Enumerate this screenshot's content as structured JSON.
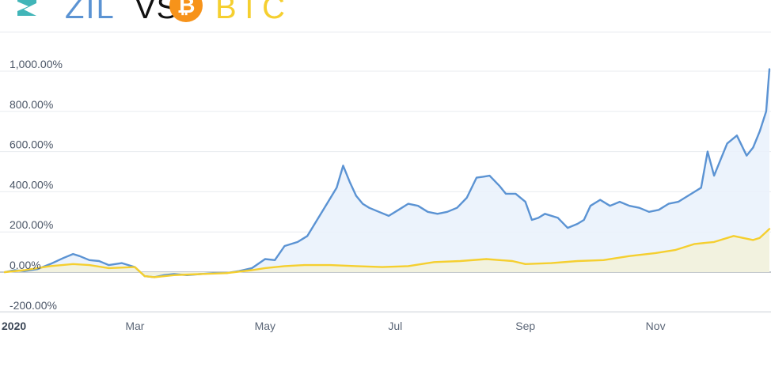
{
  "header": {
    "left_label": "ZIL",
    "vs_label": "VS",
    "right_label": "BTC",
    "left_icon": "zilliqa-logo-icon",
    "right_icon": "bitcoin-icon",
    "btc_symbol": "₿",
    "colors": {
      "zil": "#5b93d3",
      "btc": "#f5cf2f",
      "btc_coin": "#f7931a"
    }
  },
  "chart_data": {
    "type": "area",
    "title": "",
    "xlabel": "",
    "ylabel": "",
    "x_tick_labels": [
      "2020",
      "Mar",
      "May",
      "Jul",
      "Sep",
      "Nov"
    ],
    "y_tick_labels": [
      "1,000.00%",
      "800.00%",
      "600.00%",
      "400.00%",
      "200.00%",
      "0.00%",
      "-200.00%"
    ],
    "y_tick_values": [
      1000,
      800,
      600,
      400,
      200,
      0,
      -200
    ],
    "x_tick_values": [
      0,
      2,
      4,
      6,
      8,
      10
    ],
    "xlim": [
      0,
      11.75
    ],
    "ylim": [
      -200,
      1000
    ],
    "grid": true,
    "series": [
      {
        "color": "#5b93d3",
        "fill": "#e9f1fb",
        "x": [
          0,
          0.15,
          0.3,
          0.5,
          0.7,
          0.9,
          1.05,
          1.15,
          1.3,
          1.45,
          1.6,
          1.8,
          2.0,
          2.15,
          2.3,
          2.45,
          2.6,
          2.8,
          3.0,
          3.2,
          3.4,
          3.6,
          3.8,
          4.0,
          4.15,
          4.3,
          4.5,
          4.65,
          4.8,
          4.95,
          5.1,
          5.2,
          5.3,
          5.4,
          5.5,
          5.6,
          5.75,
          5.9,
          6.05,
          6.2,
          6.35,
          6.5,
          6.65,
          6.8,
          6.95,
          7.1,
          7.25,
          7.35,
          7.45,
          7.6,
          7.7,
          7.85,
          8.0,
          8.1,
          8.2,
          8.3,
          8.5,
          8.65,
          8.8,
          8.9,
          9.0,
          9.15,
          9.3,
          9.45,
          9.6,
          9.75,
          9.9,
          10.05,
          10.2,
          10.35,
          10.5,
          10.6,
          10.7,
          10.8,
          10.9,
          11.0,
          11.1,
          11.25,
          11.4,
          11.5,
          11.6,
          11.7,
          11.75
        ],
        "y": [
          0,
          10,
          5,
          15,
          40,
          70,
          90,
          80,
          60,
          55,
          35,
          45,
          25,
          -20,
          -25,
          -15,
          -10,
          -15,
          -10,
          -5,
          -5,
          5,
          20,
          65,
          60,
          130,
          150,
          180,
          260,
          340,
          420,
          530,
          450,
          380,
          340,
          320,
          300,
          280,
          310,
          340,
          330,
          300,
          290,
          300,
          320,
          370,
          470,
          475,
          480,
          430,
          390,
          390,
          350,
          260,
          270,
          290,
          270,
          220,
          240,
          260,
          330,
          360,
          330,
          350,
          330,
          320,
          300,
          310,
          340,
          350,
          380,
          400,
          420,
          600,
          480,
          560,
          640,
          680,
          580,
          620,
          700,
          800,
          1010
        ]
      },
      {
        "color": "#f5cf2f",
        "fill": "#f3f1d9",
        "x": [
          0,
          0.3,
          0.7,
          1.05,
          1.3,
          1.6,
          2.0,
          2.15,
          2.3,
          2.6,
          3.0,
          3.4,
          3.8,
          4.0,
          4.3,
          4.6,
          5.0,
          5.4,
          5.8,
          6.2,
          6.6,
          7.0,
          7.4,
          7.8,
          8.0,
          8.4,
          8.8,
          9.2,
          9.6,
          10.0,
          10.3,
          10.6,
          10.9,
          11.2,
          11.5,
          11.6,
          11.7,
          11.75
        ],
        "y": [
          0,
          10,
          30,
          40,
          35,
          20,
          25,
          -20,
          -25,
          -15,
          -10,
          -5,
          10,
          20,
          30,
          35,
          35,
          30,
          25,
          30,
          50,
          55,
          65,
          55,
          40,
          45,
          55,
          60,
          80,
          95,
          110,
          140,
          150,
          180,
          160,
          170,
          200,
          215
        ]
      }
    ]
  }
}
